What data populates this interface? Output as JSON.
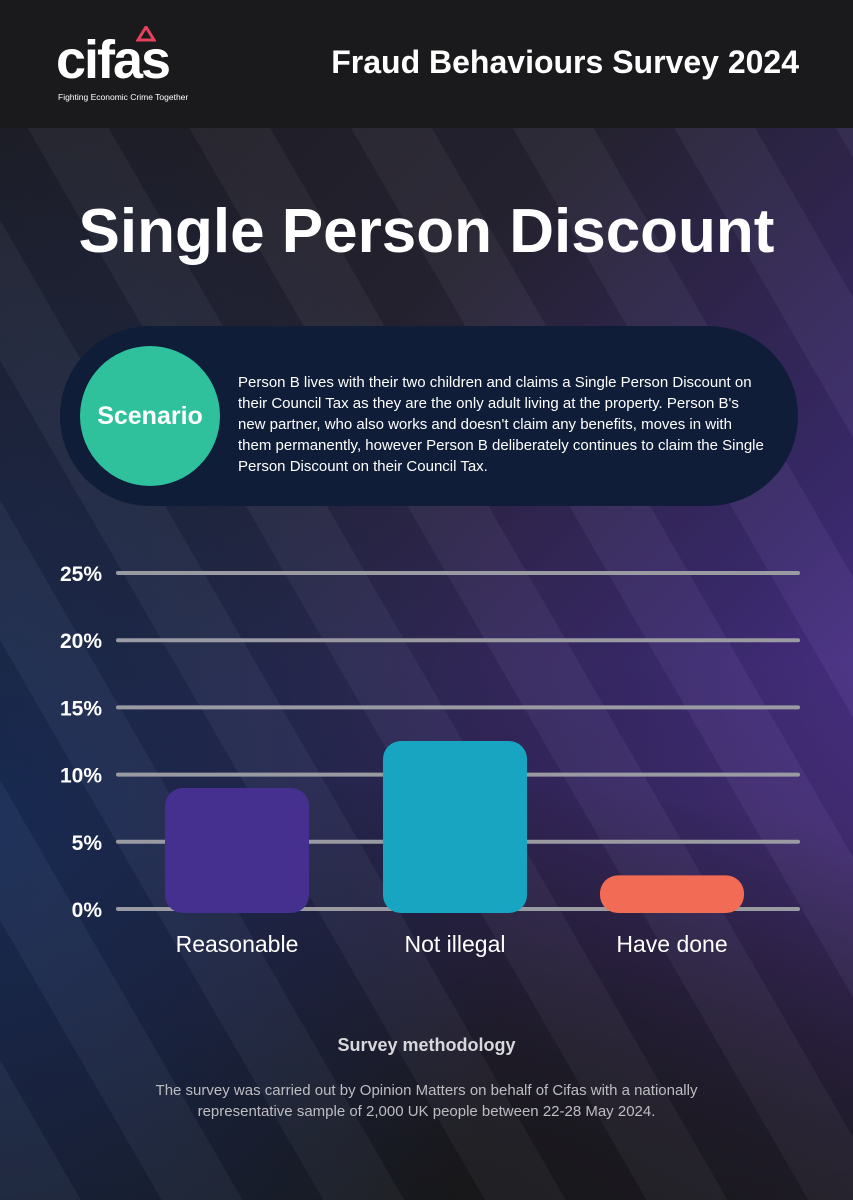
{
  "header": {
    "logo_text": "cifas",
    "logo_tagline": "Fighting Economic Crime Together",
    "survey_title": "Fraud Behaviours Survey 2024"
  },
  "page_title": "Single Person Discount",
  "scenario": {
    "label": "Scenario",
    "text": "Person B lives with their two children and claims a Single Person Discount on their Council Tax as they are the only adult living at the property. Person B's new partner, who also works and doesn't claim any benefits, moves in with them permanently, however Person B deliberately continues to claim the Single Person Discount on their Council Tax."
  },
  "chart_data": {
    "type": "bar",
    "categories": [
      "Reasonable",
      "Not illegal",
      "Have done"
    ],
    "values": [
      9,
      12.5,
      2.5
    ],
    "colors": [
      "#45308f",
      "#17a5c2",
      "#f26b55"
    ],
    "yticks": [
      "0%",
      "5%",
      "10%",
      "15%",
      "20%",
      "25%"
    ],
    "ytick_values": [
      0,
      5,
      10,
      15,
      20,
      25
    ],
    "ylim": [
      0,
      25
    ],
    "grid": true,
    "title": "",
    "xlabel": "",
    "ylabel": ""
  },
  "methodology": {
    "title": "Survey methodology",
    "text": "The survey was carried out by Opinion Matters on behalf of Cifas with a nationally representative sample of 2,000 UK people between 22-28 May 2024."
  },
  "colors": {
    "scenario_badge": "#2ec19c",
    "scenario_box": "#0f1d38",
    "logo_accent": "#e8415e"
  }
}
